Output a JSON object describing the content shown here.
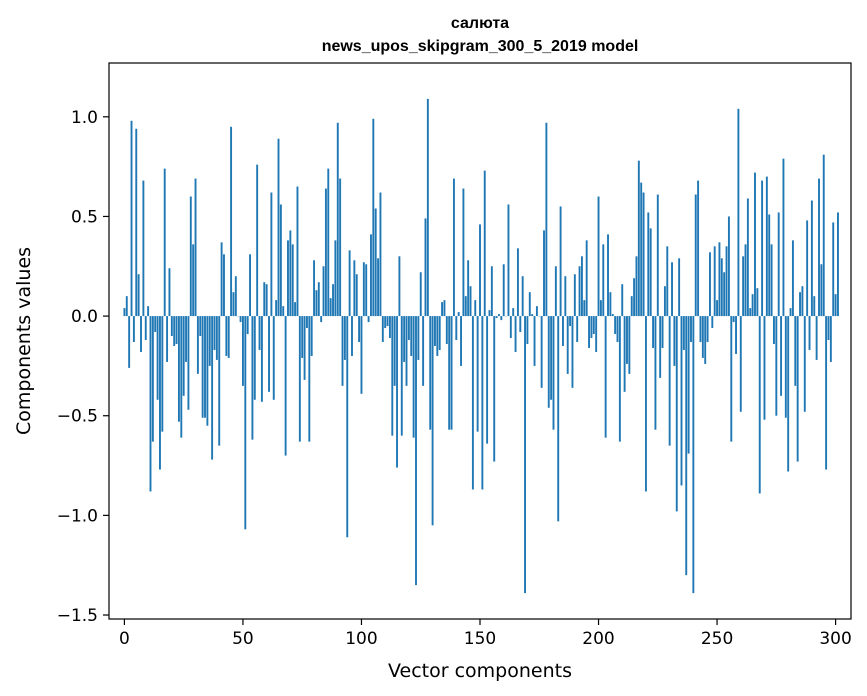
{
  "chart_data": {
    "type": "bar",
    "title_line1": "салюта",
    "title_line2": "news_upos_skipgram_300_5_2019 model",
    "xlabel": "Vector components",
    "ylabel": "Components values",
    "xlim": [
      -6.5,
      306.5
    ],
    "ylim": [
      -1.52,
      1.27
    ],
    "xticks": [
      0,
      50,
      100,
      150,
      200,
      250,
      300
    ],
    "xtick_labels": [
      "0",
      "50",
      "100",
      "150",
      "200",
      "250",
      "300"
    ],
    "yticks": [
      -1.5,
      -1.0,
      -0.5,
      0.0,
      0.5,
      1.0
    ],
    "ytick_labels": [
      "−1.5",
      "−1.0",
      "−0.5",
      "0.0",
      "0.5",
      "1.0"
    ],
    "bar_color": "#1f77b4",
    "values": [
      0.04,
      0.1,
      -0.26,
      0.98,
      -0.13,
      0.94,
      0.21,
      -0.18,
      0.68,
      -0.12,
      0.05,
      -0.88,
      -0.63,
      -0.08,
      -0.42,
      -0.77,
      -0.58,
      0.74,
      -0.23,
      0.24,
      -0.1,
      -0.15,
      -0.14,
      -0.53,
      -0.61,
      -0.4,
      -0.23,
      -0.47,
      0.6,
      0.36,
      0.69,
      -0.29,
      -0.1,
      -0.51,
      -0.51,
      -0.55,
      -0.25,
      -0.72,
      -0.17,
      -0.22,
      -0.65,
      0.37,
      0.31,
      -0.2,
      -0.21,
      0.95,
      0.12,
      0.2,
      0.0,
      -0.03,
      -0.35,
      -1.07,
      -0.09,
      0.31,
      -0.62,
      -0.42,
      0.76,
      -0.17,
      -0.43,
      0.17,
      0.16,
      -0.38,
      0.62,
      -0.42,
      0.08,
      0.89,
      0.56,
      0.05,
      -0.7,
      0.38,
      0.43,
      0.36,
      0.07,
      0.65,
      -0.63,
      -0.21,
      -0.32,
      -0.06,
      -0.63,
      -0.2,
      0.28,
      0.13,
      0.17,
      -0.03,
      0.25,
      0.64,
      0.74,
      0.09,
      0.16,
      0.38,
      0.97,
      0.69,
      -0.35,
      -0.22,
      -1.11,
      0.33,
      -0.2,
      0.28,
      0.21,
      -0.13,
      -0.39,
      0.27,
      0.26,
      -0.03,
      0.41,
      0.99,
      0.54,
      0.29,
      0.62,
      -0.13,
      -0.06,
      -0.05,
      -0.11,
      -0.6,
      -0.35,
      -0.76,
      0.3,
      -0.6,
      -0.23,
      -0.35,
      -0.12,
      -0.2,
      -0.61,
      -1.35,
      -0.22,
      0.22,
      -0.35,
      0.49,
      1.09,
      -0.57,
      -1.05,
      -0.15,
      -0.2,
      -0.17,
      0.07,
      0.08,
      -0.14,
      -0.57,
      -0.57,
      0.69,
      -0.12,
      0.02,
      -0.25,
      0.64,
      0.1,
      0.28,
      0.15,
      -0.87,
      0.08,
      -0.58,
      0.46,
      -0.87,
      0.73,
      -0.64,
      0.03,
      0.25,
      -0.73,
      -0.01,
      0.01,
      -0.02,
      0.26,
      0.0,
      0.56,
      -0.11,
      0.04,
      -0.18,
      0.34,
      -0.08,
      0.2,
      -1.39,
      -0.14,
      0.12,
      0.01,
      -0.25,
      0.05,
      0.0,
      -0.36,
      0.43,
      0.97,
      -0.46,
      -0.42,
      -0.57,
      0.25,
      -1.03,
      0.55,
      -0.15,
      0.2,
      -0.29,
      -0.05,
      -0.36,
      0.21,
      -0.13,
      0.25,
      0.3,
      0.08,
      0.38,
      -0.16,
      -0.11,
      -0.09,
      -0.18,
      0.6,
      0.08,
      0.36,
      -0.61,
      0.41,
      0.12,
      0.01,
      -0.09,
      -0.13,
      -0.63,
      0.16,
      -0.38,
      -0.24,
      -0.29,
      0.1,
      0.19,
      0.3,
      0.78,
      0.67,
      0.62,
      -0.88,
      0.52,
      0.44,
      -0.16,
      -0.57,
      0.61,
      -0.31,
      -0.16,
      0.15,
      0.35,
      -0.65,
      0.27,
      -0.25,
      -0.98,
      0.29,
      -0.85,
      -0.17,
      -1.3,
      -0.69,
      -0.13,
      -1.39,
      0.61,
      0.68,
      -0.13,
      -0.21,
      -0.24,
      -0.13,
      0.32,
      -0.06,
      0.35,
      0.08,
      0.37,
      0.29,
      0.22,
      0.35,
      0.5,
      -0.63,
      -0.03,
      -0.19,
      1.04,
      -0.48,
      0.3,
      0.36,
      0.59,
      0.04,
      0.11,
      0.72,
      0.14,
      -0.89,
      0.68,
      -0.52,
      0.7,
      0.51,
      0.36,
      -0.14,
      -0.5,
      0.52,
      -0.4,
      0.79,
      -0.51,
      -0.78,
      0.04,
      0.38,
      -0.35,
      -0.73,
      0.12,
      0.15,
      -0.48,
      0.48,
      -0.17,
      0.58,
      0.1,
      -0.22,
      0.69,
      0.26,
      0.81,
      -0.77,
      -0.12,
      -0.23,
      0.47,
      0.11,
      0.52
    ]
  }
}
